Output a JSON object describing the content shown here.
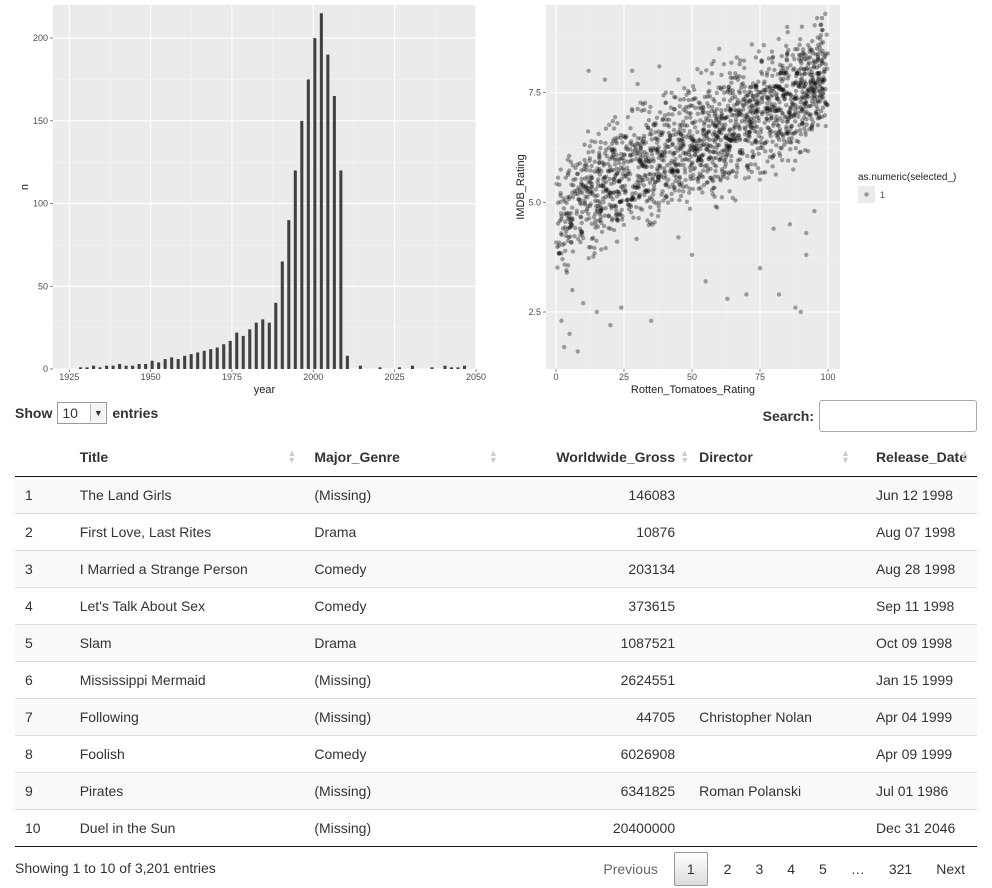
{
  "chart_data": [
    {
      "type": "bar",
      "xlabel": "year",
      "ylabel": "n",
      "xlim": [
        1920,
        2050
      ],
      "ylim": [
        0,
        220
      ],
      "x_ticks": [
        "1925",
        "1950",
        "1975",
        "2000",
        "2025",
        "2050"
      ],
      "y_ticks": [
        "0",
        "50",
        "100",
        "150",
        "200"
      ],
      "bin_width": 1,
      "x": [
        1928,
        1930,
        1932,
        1934,
        1936,
        1938,
        1940,
        1942,
        1944,
        1946,
        1948,
        1950,
        1952,
        1954,
        1956,
        1958,
        1960,
        1962,
        1964,
        1966,
        1968,
        1970,
        1972,
        1974,
        1976,
        1978,
        1980,
        1982,
        1984,
        1986,
        1988,
        1990,
        1992,
        1994,
        1996,
        1998,
        2000,
        2002,
        2004,
        2006,
        2008,
        2010,
        2014,
        2020,
        2026,
        2030,
        2036,
        2040,
        2042,
        2044,
        2046
      ],
      "values": [
        1,
        1,
        2,
        1,
        2,
        2,
        3,
        2,
        2,
        3,
        3,
        5,
        4,
        6,
        7,
        6,
        8,
        9,
        10,
        11,
        12,
        13,
        15,
        17,
        22,
        20,
        24,
        28,
        30,
        28,
        40,
        65,
        90,
        120,
        150,
        175,
        200,
        215,
        190,
        165,
        120,
        8,
        2,
        1,
        1,
        2,
        1,
        2,
        1,
        1,
        2
      ],
      "fill_color": "#404040"
    },
    {
      "type": "scatter",
      "xlabel": "Rotten_Tomatoes_Rating",
      "ylabel": "IMDB_Rating",
      "xlim": [
        0,
        100
      ],
      "ylim": [
        1.2,
        9.5
      ],
      "x_ticks": [
        "0",
        "25",
        "50",
        "75",
        "100"
      ],
      "y_ticks": [
        "2.5",
        "5.0",
        "7.5"
      ],
      "legend_title": "as.numeric(selected_)",
      "legend_labels": [
        "1"
      ],
      "legend_position": "right",
      "point_color": "#000000",
      "point_opacity": 0.35,
      "trend": {
        "x": [
          0,
          10,
          25,
          50,
          75,
          100
        ],
        "y": [
          4.6,
          5.1,
          5.6,
          6.3,
          7.0,
          7.9
        ]
      },
      "points": [
        [
          2,
          2.3
        ],
        [
          3,
          1.7
        ],
        [
          5,
          2.0
        ],
        [
          8,
          1.6
        ],
        [
          4,
          3.4
        ],
        [
          6,
          3.0
        ],
        [
          10,
          2.7
        ],
        [
          15,
          2.5
        ],
        [
          20,
          2.2
        ],
        [
          35,
          2.3
        ],
        [
          24,
          2.6
        ],
        [
          55,
          3.2
        ],
        [
          63,
          2.8
        ],
        [
          70,
          2.9
        ],
        [
          75,
          3.5
        ],
        [
          82,
          2.9
        ],
        [
          88,
          2.6
        ],
        [
          90,
          2.5
        ],
        [
          92,
          3.8
        ],
        [
          95,
          4.8
        ],
        [
          12,
          8.0
        ],
        [
          18,
          7.8
        ],
        [
          28,
          8.0
        ],
        [
          30,
          7.7
        ],
        [
          38,
          8.1
        ],
        [
          45,
          7.8
        ],
        [
          60,
          8.5
        ],
        [
          72,
          8.6
        ],
        [
          85,
          9.0
        ],
        [
          96,
          9.2
        ],
        [
          99,
          9.3
        ],
        [
          80,
          4.4
        ],
        [
          86,
          4.5
        ],
        [
          92,
          4.3
        ],
        [
          65,
          5.1
        ],
        [
          45,
          4.2
        ],
        [
          50,
          3.8
        ]
      ]
    }
  ],
  "table_controls": {
    "show_label": "Show",
    "length_value": "10",
    "entries_label": "entries",
    "search_label": "Search:",
    "search_value": ""
  },
  "table": {
    "columns": [
      "",
      "Title",
      "Major_Genre",
      "Worldwide_Gross",
      "Director",
      "Release_Date"
    ],
    "rows": [
      [
        "1",
        "The Land Girls",
        "(Missing)",
        "146083",
        "",
        "Jun 12 1998"
      ],
      [
        "2",
        "First Love, Last Rites",
        "Drama",
        "10876",
        "",
        "Aug 07 1998"
      ],
      [
        "3",
        "I Married a Strange Person",
        "Comedy",
        "203134",
        "",
        "Aug 28 1998"
      ],
      [
        "4",
        "Let's Talk About Sex",
        "Comedy",
        "373615",
        "",
        "Sep 11 1998"
      ],
      [
        "5",
        "Slam",
        "Drama",
        "1087521",
        "",
        "Oct 09 1998"
      ],
      [
        "6",
        "Mississippi Mermaid",
        "(Missing)",
        "2624551",
        "",
        "Jan 15 1999"
      ],
      [
        "7",
        "Following",
        "(Missing)",
        "44705",
        "Christopher Nolan",
        "Apr 04 1999"
      ],
      [
        "8",
        "Foolish",
        "Comedy",
        "6026908",
        "",
        "Apr 09 1999"
      ],
      [
        "9",
        "Pirates",
        "(Missing)",
        "6341825",
        "Roman Polanski",
        "Jul 01 1986"
      ],
      [
        "10",
        "Duel in the Sun",
        "(Missing)",
        "20400000",
        "",
        "Dec 31 2046"
      ]
    ]
  },
  "footer": {
    "info": "Showing 1 to 10 of 3,201 entries",
    "previous": "Previous",
    "pages": [
      "1",
      "2",
      "3",
      "4",
      "5",
      "…",
      "321"
    ],
    "current_page": "1",
    "next": "Next"
  }
}
